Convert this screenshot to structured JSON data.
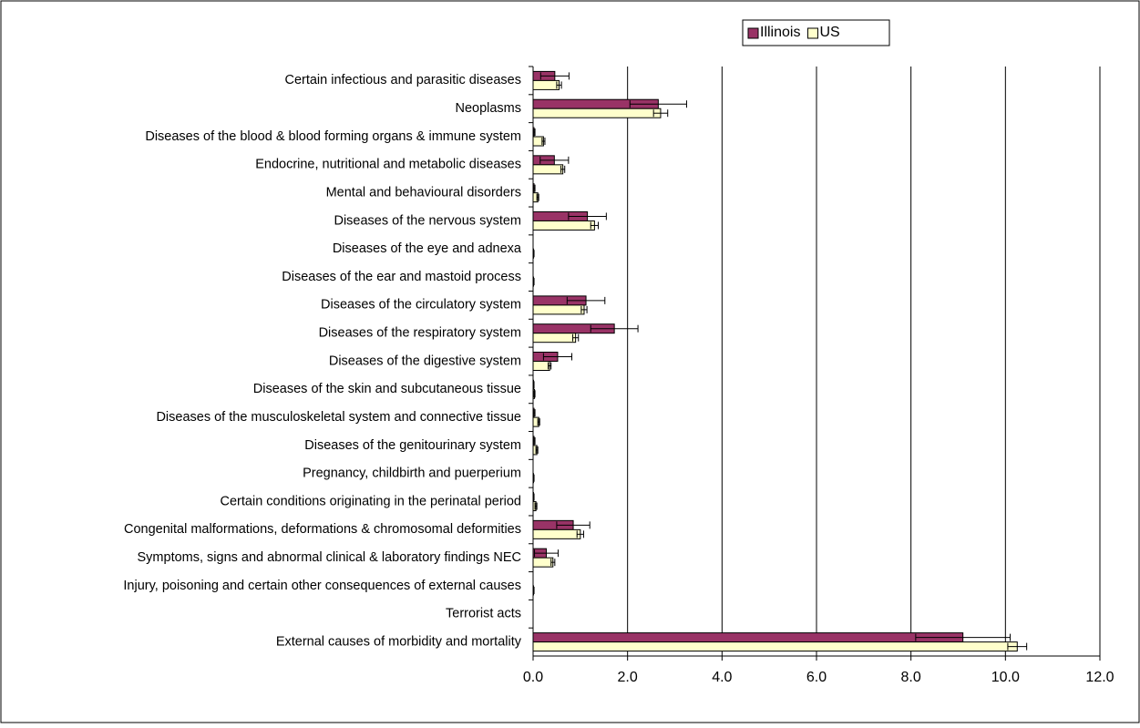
{
  "chart_data": {
    "type": "hbar",
    "categories": [
      "Certain infectious and parasitic diseases",
      "Neoplasms",
      "Diseases of the blood & blood forming organs & immune system",
      "Endocrine, nutritional and metabolic diseases",
      "Mental and behavioural disorders",
      "Diseases of the nervous system",
      "Diseases of the eye and adnexa",
      "Diseases of the ear and mastoid process",
      "Diseases of the circulatory system",
      "Diseases of the respiratory system",
      "Diseases of the digestive system",
      "Diseases of the skin and subcutaneous tissue",
      "Diseases of the musculoskeletal system and connective tissue",
      "Diseases of the genitourinary system",
      "Pregnancy, childbirth and puerperium",
      "Certain conditions originating in the perinatal period",
      "Congenital malformations, deformations & chromosomal deformities",
      "Symptoms, signs and abnormal clinical & laboratory findings NEC",
      "Injury, poisoning and certain other consequences of external causes",
      "Terrorist acts",
      "External causes of morbidity and mortality"
    ],
    "series": [
      {
        "name": "Illinois",
        "color": "#993366",
        "values": [
          0.46,
          2.65,
          0.02,
          0.45,
          0.02,
          1.15,
          0,
          0,
          1.12,
          1.72,
          0.52,
          0.01,
          0.02,
          0.02,
          0,
          0.01,
          0.85,
          0.28,
          0,
          0,
          9.1
        ],
        "errors": [
          0.3,
          0.6,
          0.02,
          0.3,
          0.02,
          0.4,
          0,
          0,
          0.4,
          0.5,
          0.3,
          0.01,
          0.02,
          0.02,
          0,
          0.01,
          0.35,
          0.25,
          0,
          0,
          1.0
        ]
      },
      {
        "name": "US",
        "color": "#ffffcc",
        "values": [
          0.55,
          2.7,
          0.22,
          0.63,
          0.1,
          1.3,
          0.01,
          0.01,
          1.08,
          0.9,
          0.35,
          0.03,
          0.12,
          0.08,
          0.01,
          0.06,
          1.0,
          0.42,
          0.01,
          0,
          10.25
        ],
        "errors": [
          0.05,
          0.15,
          0.03,
          0.04,
          0.02,
          0.08,
          0.01,
          0.01,
          0.06,
          0.06,
          0.03,
          0.01,
          0.02,
          0.02,
          0.01,
          0.02,
          0.07,
          0.04,
          0.01,
          0,
          0.2
        ]
      }
    ],
    "xlim": [
      0,
      12
    ],
    "xticks": [
      {
        "value": 0,
        "label": "0.0"
      },
      {
        "value": 2,
        "label": "2.0"
      },
      {
        "value": 4,
        "label": "4.0"
      },
      {
        "value": 6,
        "label": "6.0"
      },
      {
        "value": 8,
        "label": "8.0"
      },
      {
        "value": 10,
        "label": "10.0"
      },
      {
        "value": 12,
        "label": "12.0"
      }
    ],
    "grid": true,
    "legend": "top"
  }
}
